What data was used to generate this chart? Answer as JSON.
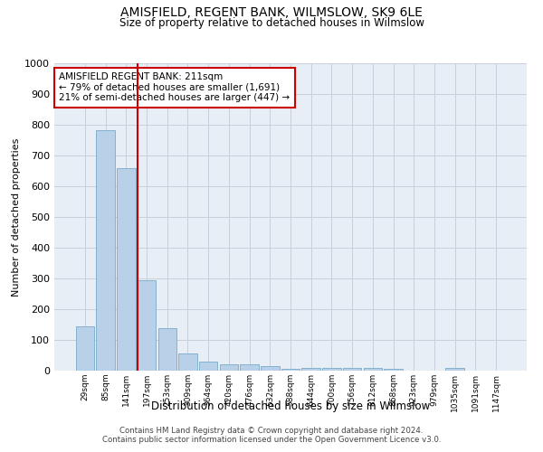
{
  "title": "AMISFIELD, REGENT BANK, WILMSLOW, SK9 6LE",
  "subtitle": "Size of property relative to detached houses in Wilmslow",
  "xlabel": "Distribution of detached houses by size in Wilmslow",
  "ylabel": "Number of detached properties",
  "bar_color": "#b8d0e8",
  "bar_edge_color": "#7aaac8",
  "vline_color": "#cc0000",
  "vline_x_index": 2.55,
  "categories": [
    "29sqm",
    "85sqm",
    "141sqm",
    "197sqm",
    "253sqm",
    "309sqm",
    "364sqm",
    "420sqm",
    "476sqm",
    "532sqm",
    "588sqm",
    "644sqm",
    "700sqm",
    "756sqm",
    "812sqm",
    "868sqm",
    "923sqm",
    "979sqm",
    "1035sqm",
    "1091sqm",
    "1147sqm"
  ],
  "values": [
    143,
    783,
    660,
    295,
    137,
    55,
    29,
    20,
    20,
    14,
    7,
    10,
    10,
    10,
    10,
    7,
    0,
    0,
    10,
    0,
    0
  ],
  "ylim": [
    0,
    1000
  ],
  "yticks": [
    0,
    100,
    200,
    300,
    400,
    500,
    600,
    700,
    800,
    900,
    1000
  ],
  "annotation_text": "AMISFIELD REGENT BANK: 211sqm\n← 79% of detached houses are smaller (1,691)\n21% of semi-detached houses are larger (447) →",
  "annotation_box_color": "#ffffff",
  "annotation_box_edge": "#cc0000",
  "footer_line1": "Contains HM Land Registry data © Crown copyright and database right 2024.",
  "footer_line2": "Contains public sector information licensed under the Open Government Licence v3.0.",
  "grid_color": "#c8d0dc",
  "background_color": "#e8eef5"
}
